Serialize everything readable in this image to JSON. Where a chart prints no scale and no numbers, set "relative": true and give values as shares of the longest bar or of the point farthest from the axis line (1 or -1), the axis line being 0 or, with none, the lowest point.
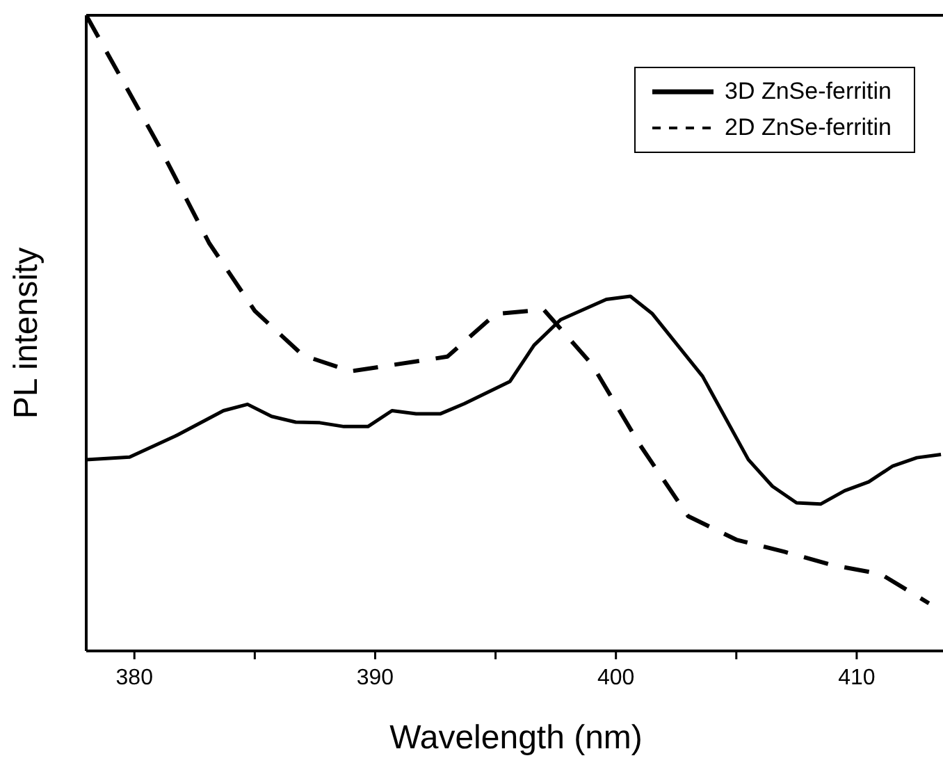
{
  "chart_data": {
    "type": "line",
    "xlabel": "Wavelength (nm)",
    "ylabel": "PL intensity",
    "relative": true,
    "xlim": [
      378,
      413.7
    ],
    "xticks": [
      380,
      {
        "value": 385,
        "label": null
      },
      390,
      {
        "value": 395,
        "label": null
      },
      400,
      {
        "value": 405,
        "label": null
      },
      410
    ],
    "legend": "top right",
    "marker": "none",
    "series": [
      {
        "name": "3D ZnSe-ferritin",
        "color": "#000000",
        "line_style": "solid",
        "x": [
          378.0,
          379.8,
          381.7,
          383.7,
          384.7,
          385.7,
          386.7,
          387.7,
          388.7,
          389.7,
          390.7,
          391.7,
          392.7,
          393.7,
          395.6,
          396.6,
          397.7,
          399.6,
          400.6,
          401.5,
          403.6,
          405.5,
          406.5,
          407.5,
          408.5,
          409.5,
          410.5,
          411.5,
          412.5,
          413.5
        ],
        "values": [
          0.301,
          0.305,
          0.338,
          0.378,
          0.388,
          0.369,
          0.36,
          0.359,
          0.353,
          0.353,
          0.378,
          0.373,
          0.373,
          0.389,
          0.424,
          0.481,
          0.521,
          0.553,
          0.558,
          0.531,
          0.432,
          0.301,
          0.259,
          0.233,
          0.231,
          0.252,
          0.266,
          0.291,
          0.304,
          0.309
        ]
      },
      {
        "name": "2D ZnSe-ferritin",
        "color": "#000000",
        "line_style": "dashed",
        "x": [
          378.0,
          381.0,
          383.1,
          385.0,
          387.0,
          389.0,
          393.0,
          395.0,
          397.0,
          399.0,
          401.0,
          403.0,
          405.0,
          407.0,
          409.0,
          411.0,
          413.0
        ],
        "values": [
          1.0,
          0.796,
          0.642,
          0.535,
          0.465,
          0.44,
          0.463,
          0.53,
          0.537,
          0.451,
          0.324,
          0.212,
          0.175,
          0.156,
          0.135,
          0.121,
          0.075
        ]
      }
    ]
  }
}
